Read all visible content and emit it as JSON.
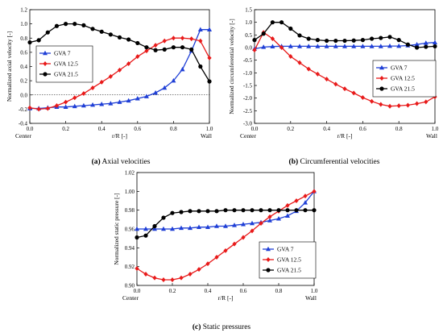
{
  "figure": {
    "captions": [
      {
        "letter": "(a)",
        "text": " Axial velocities"
      },
      {
        "letter": "(b)",
        "text": " Circumferential velocities"
      },
      {
        "letter": "(c)",
        "text": " Static pressures"
      }
    ]
  },
  "chart_data": [
    {
      "type": "line",
      "xlabel": "r/R [-]",
      "ylabel": "Normalized axial velocity [-]",
      "xlim": [
        0,
        1
      ],
      "ylim": [
        -0.4,
        1.2
      ],
      "xticks": [
        "0.0",
        "0.2",
        "0.4",
        "0.6",
        "0.8",
        "1.0"
      ],
      "yticks": [
        "-0.4",
        "-0.2",
        "0.0",
        "0.2",
        "0.4",
        "0.6",
        "0.8",
        "1.0",
        "1.2"
      ],
      "x_end_labels": {
        "left": "Center",
        "right": "Wall"
      },
      "zero_line": true,
      "legend": "left-middle",
      "series": [
        {
          "name": "GVA 7",
          "color": "#1f3fd6",
          "marker": "triangle",
          "x": [
            0.0,
            0.05,
            0.1,
            0.15,
            0.2,
            0.25,
            0.3,
            0.35,
            0.4,
            0.45,
            0.5,
            0.55,
            0.6,
            0.65,
            0.7,
            0.75,
            0.8,
            0.85,
            0.9,
            0.95,
            1.0
          ],
          "y": [
            -0.19,
            -0.19,
            -0.18,
            -0.17,
            -0.17,
            -0.16,
            -0.15,
            -0.14,
            -0.13,
            -0.12,
            -0.1,
            -0.08,
            -0.05,
            -0.02,
            0.03,
            0.1,
            0.2,
            0.36,
            0.62,
            0.92,
            0.92
          ]
        },
        {
          "name": "GVA 12.5",
          "color": "#e81a1a",
          "marker": "diamond",
          "x": [
            0.0,
            0.05,
            0.1,
            0.15,
            0.2,
            0.25,
            0.3,
            0.35,
            0.4,
            0.45,
            0.5,
            0.55,
            0.6,
            0.65,
            0.7,
            0.75,
            0.8,
            0.85,
            0.9,
            0.95,
            1.0
          ],
          "y": [
            -0.18,
            -0.2,
            -0.19,
            -0.15,
            -0.1,
            -0.04,
            0.02,
            0.1,
            0.18,
            0.26,
            0.35,
            0.44,
            0.54,
            0.62,
            0.7,
            0.76,
            0.8,
            0.8,
            0.79,
            0.76,
            0.52
          ]
        },
        {
          "name": "GVA 21.5",
          "color": "#000000",
          "marker": "circle",
          "x": [
            0.0,
            0.05,
            0.1,
            0.15,
            0.2,
            0.25,
            0.3,
            0.35,
            0.4,
            0.45,
            0.5,
            0.55,
            0.6,
            0.65,
            0.7,
            0.75,
            0.8,
            0.85,
            0.9,
            0.95,
            1.0
          ],
          "y": [
            0.74,
            0.77,
            0.88,
            0.97,
            1.0,
            1.0,
            0.98,
            0.93,
            0.89,
            0.85,
            0.81,
            0.78,
            0.73,
            0.67,
            0.63,
            0.64,
            0.67,
            0.67,
            0.64,
            0.4,
            0.19
          ]
        }
      ]
    },
    {
      "type": "line",
      "xlabel": "r/R [-]",
      "ylabel": "Normalized circumferential velocity [-]",
      "xlim": [
        0,
        1
      ],
      "ylim": [
        -3.0,
        1.5
      ],
      "xticks": [
        "0.0",
        "0.2",
        "0.4",
        "0.6",
        "0.8",
        "1.0"
      ],
      "yticks": [
        "-3.0",
        "-2.5",
        "-2.0",
        "-1.5",
        "-1.0",
        "-0.5",
        "0.0",
        "0.5",
        "1.0",
        "1.5"
      ],
      "x_end_labels": {
        "left": "Center",
        "right": "Wall"
      },
      "zero_line": false,
      "legend": "right-middle",
      "series": [
        {
          "name": "GVA 7",
          "color": "#1f3fd6",
          "marker": "triangle",
          "x": [
            0.0,
            0.05,
            0.1,
            0.15,
            0.2,
            0.25,
            0.3,
            0.35,
            0.4,
            0.45,
            0.5,
            0.55,
            0.6,
            0.65,
            0.7,
            0.75,
            0.8,
            0.85,
            0.9,
            0.95,
            1.0
          ],
          "y": [
            -0.05,
            0.02,
            0.04,
            0.05,
            0.05,
            0.05,
            0.05,
            0.05,
            0.05,
            0.05,
            0.05,
            0.05,
            0.05,
            0.05,
            0.05,
            0.06,
            0.06,
            0.08,
            0.12,
            0.18,
            0.2
          ]
        },
        {
          "name": "GVA 12.5",
          "color": "#e81a1a",
          "marker": "diamond",
          "x": [
            0.0,
            0.05,
            0.1,
            0.15,
            0.2,
            0.25,
            0.3,
            0.35,
            0.4,
            0.45,
            0.5,
            0.55,
            0.6,
            0.65,
            0.7,
            0.75,
            0.8,
            0.85,
            0.9,
            0.95,
            1.0
          ],
          "y": [
            -0.1,
            0.6,
            0.35,
            0.0,
            -0.35,
            -0.6,
            -0.85,
            -1.05,
            -1.25,
            -1.45,
            -1.63,
            -1.8,
            -1.98,
            -2.13,
            -2.25,
            -2.32,
            -2.3,
            -2.28,
            -2.22,
            -2.15,
            -1.95
          ]
        },
        {
          "name": "GVA 21.5",
          "color": "#000000",
          "marker": "circle",
          "x": [
            0.0,
            0.05,
            0.1,
            0.15,
            0.2,
            0.25,
            0.3,
            0.35,
            0.4,
            0.45,
            0.5,
            0.55,
            0.6,
            0.65,
            0.7,
            0.75,
            0.8,
            0.85,
            0.9,
            0.95,
            1.0
          ],
          "y": [
            0.3,
            0.55,
            1.0,
            1.0,
            0.75,
            0.48,
            0.35,
            0.3,
            0.27,
            0.27,
            0.27,
            0.28,
            0.3,
            0.35,
            0.38,
            0.42,
            0.3,
            0.12,
            0.0,
            0.03,
            0.05
          ]
        }
      ]
    },
    {
      "type": "line",
      "xlabel": "r/R [-]",
      "ylabel": "Normalized static pressure [-]",
      "xlim": [
        0,
        1
      ],
      "ylim": [
        0.9,
        1.02
      ],
      "xticks": [
        "0.0",
        "0.2",
        "0.4",
        "0.6",
        "0.8",
        "1.0"
      ],
      "yticks": [
        "0.90",
        "0.92",
        "0.94",
        "0.96",
        "0.98",
        "1.00",
        "1.02"
      ],
      "x_end_labels": {
        "left": "Center",
        "right": "Wall"
      },
      "zero_line": false,
      "legend": "right-middle",
      "series": [
        {
          "name": "GVA 7",
          "color": "#1f3fd6",
          "marker": "triangle",
          "x": [
            0.0,
            0.05,
            0.1,
            0.15,
            0.2,
            0.25,
            0.3,
            0.35,
            0.4,
            0.45,
            0.5,
            0.55,
            0.6,
            0.65,
            0.7,
            0.75,
            0.8,
            0.85,
            0.9,
            0.95,
            1.0
          ],
          "y": [
            0.96,
            0.96,
            0.96,
            0.96,
            0.96,
            0.961,
            0.961,
            0.962,
            0.962,
            0.963,
            0.963,
            0.964,
            0.965,
            0.966,
            0.967,
            0.969,
            0.971,
            0.974,
            0.979,
            0.988,
            1.0
          ]
        },
        {
          "name": "GVA 12.5",
          "color": "#e81a1a",
          "marker": "diamond",
          "x": [
            0.0,
            0.05,
            0.1,
            0.15,
            0.2,
            0.25,
            0.3,
            0.35,
            0.4,
            0.45,
            0.5,
            0.55,
            0.6,
            0.65,
            0.7,
            0.75,
            0.8,
            0.85,
            0.9,
            0.95,
            1.0
          ],
          "y": [
            0.918,
            0.912,
            0.908,
            0.906,
            0.906,
            0.908,
            0.912,
            0.917,
            0.923,
            0.93,
            0.937,
            0.944,
            0.951,
            0.958,
            0.966,
            0.973,
            0.979,
            0.985,
            0.99,
            0.995,
            1.0
          ]
        },
        {
          "name": "GVA 21.5",
          "color": "#000000",
          "marker": "circle",
          "x": [
            0.0,
            0.05,
            0.1,
            0.15,
            0.2,
            0.25,
            0.3,
            0.35,
            0.4,
            0.45,
            0.5,
            0.55,
            0.6,
            0.65,
            0.7,
            0.75,
            0.8,
            0.85,
            0.9,
            0.95,
            1.0
          ],
          "y": [
            0.951,
            0.953,
            0.963,
            0.972,
            0.977,
            0.978,
            0.979,
            0.979,
            0.979,
            0.979,
            0.98,
            0.98,
            0.98,
            0.98,
            0.98,
            0.98,
            0.98,
            0.98,
            0.98,
            0.98,
            0.98
          ]
        }
      ]
    }
  ]
}
